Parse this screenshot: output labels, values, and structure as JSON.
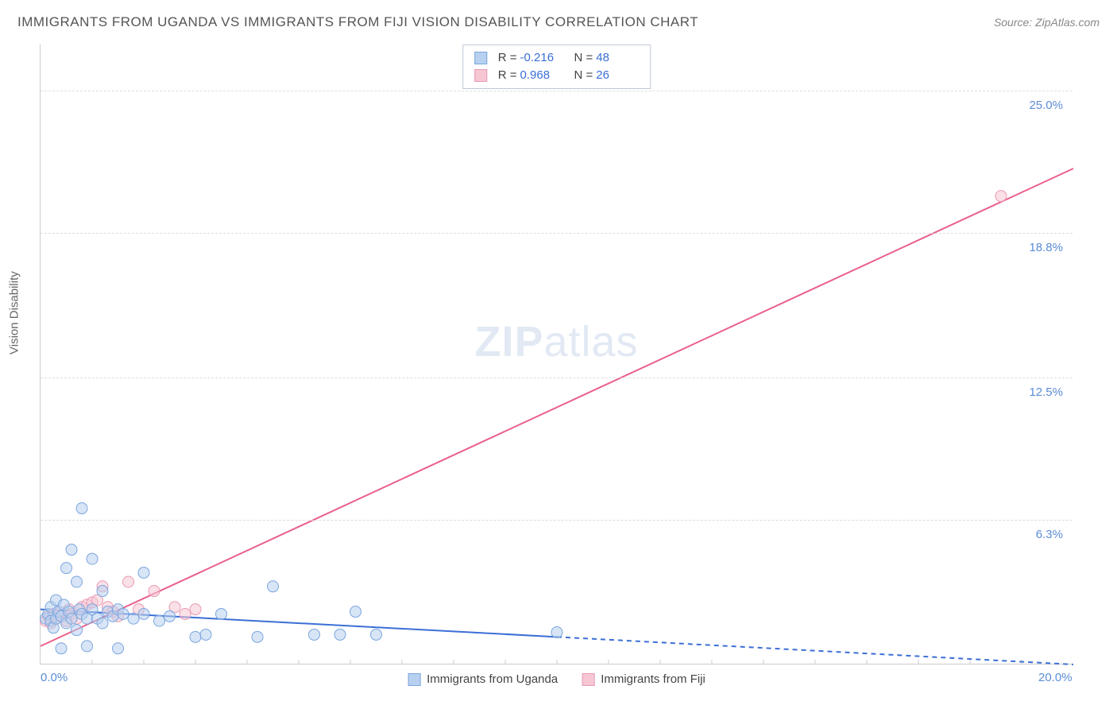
{
  "title": "IMMIGRANTS FROM UGANDA VS IMMIGRANTS FROM FIJI VISION DISABILITY CORRELATION CHART",
  "source_label": "Source: ZipAtlas.com",
  "watermark": {
    "zip": "ZIP",
    "atlas": "atlas"
  },
  "y_axis_label": "Vision Disability",
  "chart": {
    "type": "scatter",
    "xlim": [
      0,
      20
    ],
    "ylim": [
      0,
      27
    ],
    "x_ticks_minor": [
      1,
      2,
      3,
      4,
      5,
      6,
      7,
      8,
      9,
      10,
      11,
      12,
      13,
      14,
      15,
      16,
      17,
      18,
      19
    ],
    "y_grid": [
      6.3,
      12.5,
      18.8,
      25.0
    ],
    "x_labels": [
      {
        "value": 0.0,
        "text": "0.0%"
      },
      {
        "value": 20.0,
        "text": "20.0%"
      }
    ],
    "y_labels": [
      {
        "value": 6.3,
        "text": "6.3%"
      },
      {
        "value": 12.5,
        "text": "12.5%"
      },
      {
        "value": 18.8,
        "text": "18.8%"
      },
      {
        "value": 25.0,
        "text": "25.0%"
      }
    ],
    "background_color": "#ffffff",
    "grid_color": "#dddddd",
    "marker_radius": 7,
    "marker_opacity": 0.55,
    "line_width": 2,
    "series": [
      {
        "name": "Immigrants from Uganda",
        "color_fill": "#b8d0ef",
        "color_stroke": "#7ba6de",
        "line_color": "#3b6fd6",
        "R": "-0.216",
        "N": "48",
        "trend": {
          "x1": 0,
          "y1": 2.4,
          "x2": 20,
          "y2": 0.0,
          "solid_until_x": 10.0
        },
        "points": [
          [
            0.1,
            2.0
          ],
          [
            0.15,
            2.2
          ],
          [
            0.2,
            1.9
          ],
          [
            0.2,
            2.5
          ],
          [
            0.25,
            1.6
          ],
          [
            0.3,
            2.0
          ],
          [
            0.3,
            2.8
          ],
          [
            0.35,
            2.3
          ],
          [
            0.4,
            2.1
          ],
          [
            0.4,
            0.7
          ],
          [
            0.45,
            2.6
          ],
          [
            0.5,
            1.8
          ],
          [
            0.5,
            4.2
          ],
          [
            0.55,
            2.3
          ],
          [
            0.6,
            5.0
          ],
          [
            0.6,
            2.0
          ],
          [
            0.7,
            3.6
          ],
          [
            0.7,
            1.5
          ],
          [
            0.75,
            2.4
          ],
          [
            0.8,
            6.8
          ],
          [
            0.8,
            2.2
          ],
          [
            0.9,
            2.0
          ],
          [
            0.9,
            0.8
          ],
          [
            1.0,
            4.6
          ],
          [
            1.0,
            2.4
          ],
          [
            1.1,
            2.0
          ],
          [
            1.2,
            1.8
          ],
          [
            1.2,
            3.2
          ],
          [
            1.3,
            2.3
          ],
          [
            1.4,
            2.1
          ],
          [
            1.5,
            2.4
          ],
          [
            1.5,
            0.7
          ],
          [
            1.6,
            2.2
          ],
          [
            1.8,
            2.0
          ],
          [
            2.0,
            4.0
          ],
          [
            2.0,
            2.2
          ],
          [
            2.3,
            1.9
          ],
          [
            2.5,
            2.1
          ],
          [
            3.0,
            1.2
          ],
          [
            3.2,
            1.3
          ],
          [
            3.5,
            2.2
          ],
          [
            4.2,
            1.2
          ],
          [
            4.5,
            3.4
          ],
          [
            5.3,
            1.3
          ],
          [
            5.8,
            1.3
          ],
          [
            6.1,
            2.3
          ],
          [
            6.5,
            1.3
          ],
          [
            10.0,
            1.4
          ]
        ]
      },
      {
        "name": "Immigrants from Fiji",
        "color_fill": "#f6c6d3",
        "color_stroke": "#e99ab2",
        "line_color": "#ea5f8b",
        "R": "0.968",
        "N": "26",
        "trend": {
          "x1": 0,
          "y1": 0.8,
          "x2": 20,
          "y2": 21.6,
          "solid_until_x": 20.0
        },
        "points": [
          [
            0.1,
            1.9
          ],
          [
            0.15,
            2.1
          ],
          [
            0.2,
            1.8
          ],
          [
            0.25,
            2.2
          ],
          [
            0.3,
            2.0
          ],
          [
            0.35,
            2.3
          ],
          [
            0.4,
            2.1
          ],
          [
            0.5,
            1.9
          ],
          [
            0.55,
            2.4
          ],
          [
            0.6,
            2.2
          ],
          [
            0.7,
            2.0
          ],
          [
            0.8,
            2.5
          ],
          [
            0.9,
            2.6
          ],
          [
            1.0,
            2.7
          ],
          [
            1.1,
            2.8
          ],
          [
            1.2,
            3.4
          ],
          [
            1.3,
            2.5
          ],
          [
            1.4,
            2.3
          ],
          [
            1.5,
            2.1
          ],
          [
            1.7,
            3.6
          ],
          [
            1.9,
            2.4
          ],
          [
            2.2,
            3.2
          ],
          [
            2.6,
            2.5
          ],
          [
            2.8,
            2.2
          ],
          [
            3.0,
            2.4
          ],
          [
            18.6,
            20.4
          ]
        ]
      }
    ]
  },
  "legend_bottom": [
    {
      "label": "Immigrants from Uganda",
      "fill": "#b8d0ef",
      "stroke": "#7ba6de"
    },
    {
      "label": "Immigrants from Fiji",
      "fill": "#f6c6d3",
      "stroke": "#e99ab2"
    }
  ]
}
